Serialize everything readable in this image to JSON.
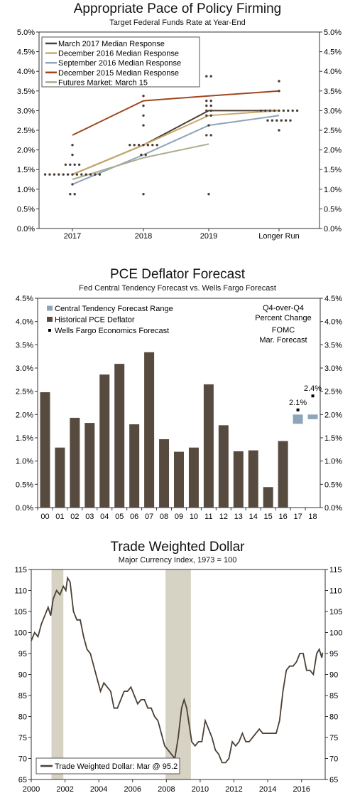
{
  "chart_data": [
    {
      "type": "line",
      "title": "Appropriate Pace of Policy Firming",
      "subtitle": "Target Federal Funds Rate at Year-End",
      "categories": [
        "2017",
        "2018",
        "2019",
        "Longer Run"
      ],
      "ylim": [
        0,
        5
      ],
      "yticks": [
        "0.0%",
        "0.5%",
        "1.0%",
        "1.5%",
        "2.0%",
        "2.5%",
        "3.0%",
        "3.5%",
        "4.0%",
        "4.5%",
        "5.0%"
      ],
      "series": [
        {
          "name": "March 2017 Median Response",
          "color": "#4a3f35",
          "values": [
            1.375,
            2.125,
            3.0,
            3.0
          ]
        },
        {
          "name": "December 2016 Median Response",
          "color": "#c9a96a",
          "values": [
            1.375,
            2.125,
            2.875,
            3.0
          ]
        },
        {
          "name": "September 2016 Median Response",
          "color": "#8ea4b8",
          "values": [
            1.125,
            1.875,
            2.625,
            2.875
          ]
        },
        {
          "name": "December 2015 Median Response",
          "color": "#a0461d",
          "values": [
            2.375,
            3.25,
            3.375,
            3.5
          ]
        },
        {
          "name": "Futures Market: March 15",
          "color": "#a9ad8e",
          "values": [
            1.25,
            1.8,
            2.15,
            null
          ]
        }
      ],
      "dots": [
        {
          "x": "2017",
          "values": [
            0.875,
            0.875,
            1.125,
            1.375,
            1.375,
            1.375,
            1.375,
            1.375,
            1.375,
            1.375,
            1.375,
            1.375,
            1.375,
            1.375,
            1.375,
            1.375,
            1.625,
            1.625,
            1.625,
            1.625,
            1.875,
            2.125
          ]
        },
        {
          "x": "2018",
          "values": [
            0.875,
            1.875,
            1.875,
            2.125,
            2.125,
            2.125,
            2.125,
            2.125,
            2.125,
            2.125,
            2.625,
            2.875,
            3.125,
            3.375
          ]
        },
        {
          "x": "2019",
          "values": [
            0.875,
            2.375,
            2.375,
            2.625,
            2.875,
            2.875,
            3.0,
            3.0,
            3.125,
            3.125,
            3.25,
            3.25,
            3.875,
            3.875
          ]
        },
        {
          "x": "Longer Run",
          "values": [
            2.5,
            2.75,
            2.75,
            2.75,
            2.75,
            2.75,
            2.75,
            3.0,
            3.0,
            3.0,
            3.0,
            3.0,
            3.0,
            3.0,
            3.0,
            3.0,
            3.5,
            3.75
          ]
        }
      ]
    },
    {
      "type": "bar",
      "title": "PCE Deflator Forecast",
      "subtitle": "Fed Central Tendency Forecast vs. Wells Fargo Forecast",
      "categories": [
        "00",
        "01",
        "02",
        "03",
        "04",
        "05",
        "06",
        "07",
        "08",
        "09",
        "10",
        "11",
        "12",
        "13",
        "14",
        "15",
        "16",
        "17",
        "18"
      ],
      "ylim": [
        0,
        4.5
      ],
      "yticks": [
        "0.0%",
        "0.5%",
        "1.0%",
        "1.5%",
        "2.0%",
        "2.5%",
        "3.0%",
        "3.5%",
        "4.0%",
        "4.5%"
      ],
      "series": [
        {
          "name": "Historical PCE Deflator",
          "color": "#574b40",
          "values": [
            2.48,
            1.29,
            1.93,
            1.82,
            2.86,
            3.09,
            1.79,
            3.34,
            1.47,
            1.2,
            1.29,
            2.65,
            1.77,
            1.21,
            1.23,
            0.44,
            1.43,
            null,
            null
          ]
        },
        {
          "name": "Central Tendency Forecast Range",
          "color": "#8ea4b8",
          "ranges": [
            null,
            null,
            null,
            null,
            null,
            null,
            null,
            null,
            null,
            null,
            null,
            null,
            null,
            null,
            null,
            null,
            null,
            [
              1.8,
              2.0
            ],
            [
              1.9,
              2.0
            ]
          ]
        },
        {
          "name": "Wells Fargo Economics Forecast",
          "color": "#000000",
          "values": [
            null,
            null,
            null,
            null,
            null,
            null,
            null,
            null,
            null,
            null,
            null,
            null,
            null,
            null,
            null,
            null,
            null,
            2.1,
            2.4
          ]
        }
      ],
      "data_labels": [
        "2.1%",
        "2.4%"
      ],
      "annotation": [
        "Q4-over-Q4",
        "Percent Change",
        "FOMC",
        "Mar. Forecast"
      ]
    },
    {
      "type": "line",
      "title": "Trade Weighted Dollar",
      "subtitle": "Major Currency Index, 1973 = 100",
      "xlim": [
        2000,
        2017.4
      ],
      "xticks": [
        "2000",
        "2002",
        "2004",
        "2006",
        "2008",
        "2010",
        "2012",
        "2014",
        "2016"
      ],
      "ylim": [
        65,
        115
      ],
      "yticks": [
        "65",
        "70",
        "75",
        "80",
        "85",
        "90",
        "95",
        "100",
        "105",
        "110",
        "115"
      ],
      "recessions": [
        [
          2001.2,
          2001.9
        ],
        [
          2007.95,
          2009.45
        ]
      ],
      "series": [
        {
          "name": "Trade Weighted Dollar: Mar @ 95.2",
          "color": "#4a3f35",
          "points": [
            [
              2000.0,
              98
            ],
            [
              2000.2,
              100
            ],
            [
              2000.4,
              99
            ],
            [
              2000.6,
              102
            ],
            [
              2000.8,
              104
            ],
            [
              2001.0,
              106
            ],
            [
              2001.15,
              104
            ],
            [
              2001.3,
              108
            ],
            [
              2001.5,
              110
            ],
            [
              2001.7,
              109
            ],
            [
              2001.9,
              111
            ],
            [
              2002.05,
              110
            ],
            [
              2002.15,
              113
            ],
            [
              2002.3,
              112
            ],
            [
              2002.5,
              105
            ],
            [
              2002.7,
              103
            ],
            [
              2002.9,
              103
            ],
            [
              2003.1,
              99
            ],
            [
              2003.3,
              96
            ],
            [
              2003.5,
              95
            ],
            [
              2003.7,
              92
            ],
            [
              2003.9,
              89
            ],
            [
              2004.1,
              86
            ],
            [
              2004.3,
              88
            ],
            [
              2004.5,
              87
            ],
            [
              2004.7,
              86
            ],
            [
              2004.9,
              82
            ],
            [
              2005.1,
              82
            ],
            [
              2005.3,
              84
            ],
            [
              2005.5,
              86
            ],
            [
              2005.7,
              86
            ],
            [
              2005.9,
              87
            ],
            [
              2006.1,
              85
            ],
            [
              2006.3,
              83
            ],
            [
              2006.5,
              84
            ],
            [
              2006.7,
              84
            ],
            [
              2006.9,
              82
            ],
            [
              2007.1,
              82
            ],
            [
              2007.3,
              80
            ],
            [
              2007.5,
              79
            ],
            [
              2007.7,
              76
            ],
            [
              2007.9,
              73
            ],
            [
              2008.1,
              72
            ],
            [
              2008.3,
              71
            ],
            [
              2008.5,
              70
            ],
            [
              2008.7,
              75
            ],
            [
              2008.9,
              82
            ],
            [
              2009.05,
              84
            ],
            [
              2009.2,
              82
            ],
            [
              2009.35,
              78
            ],
            [
              2009.5,
              74
            ],
            [
              2009.7,
              73
            ],
            [
              2009.9,
              74
            ],
            [
              2010.1,
              74
            ],
            [
              2010.3,
              79
            ],
            [
              2010.5,
              77
            ],
            [
              2010.7,
              75
            ],
            [
              2010.9,
              72
            ],
            [
              2011.1,
              71
            ],
            [
              2011.3,
              69
            ],
            [
              2011.5,
              69
            ],
            [
              2011.7,
              70
            ],
            [
              2011.9,
              74
            ],
            [
              2012.1,
              73
            ],
            [
              2012.3,
              74
            ],
            [
              2012.5,
              76
            ],
            [
              2012.7,
              74
            ],
            [
              2012.9,
              74
            ],
            [
              2013.1,
              75
            ],
            [
              2013.3,
              76
            ],
            [
              2013.5,
              77
            ],
            [
              2013.7,
              76
            ],
            [
              2013.9,
              76
            ],
            [
              2014.1,
              76
            ],
            [
              2014.3,
              76
            ],
            [
              2014.5,
              76
            ],
            [
              2014.7,
              79
            ],
            [
              2014.9,
              86
            ],
            [
              2015.1,
              91
            ],
            [
              2015.3,
              92
            ],
            [
              2015.5,
              92
            ],
            [
              2015.7,
              93
            ],
            [
              2015.9,
              95
            ],
            [
              2016.1,
              95
            ],
            [
              2016.3,
              91
            ],
            [
              2016.5,
              91
            ],
            [
              2016.7,
              90
            ],
            [
              2016.9,
              95
            ],
            [
              2017.05,
              96
            ],
            [
              2017.2,
              94
            ],
            [
              2017.25,
              95.2
            ]
          ]
        }
      ]
    }
  ]
}
